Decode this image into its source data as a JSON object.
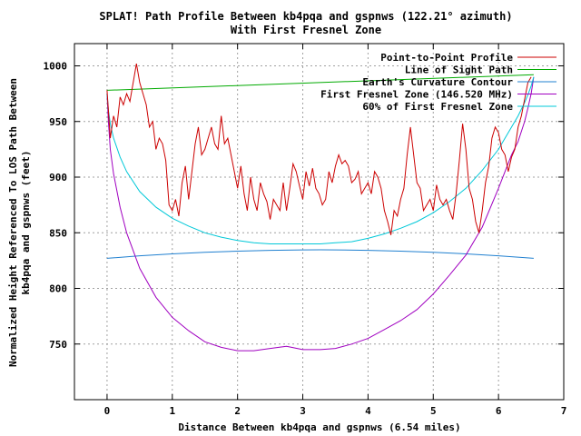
{
  "chart_data": {
    "type": "line",
    "title": "SPLAT! Path Profile Between kb4pqa and gspnws (122.21° azimuth)",
    "subtitle": "With First Fresnel Zone",
    "xlabel": "Distance Between kb4pqa and gspnws (6.54 miles)",
    "ylabel_line1": "Normalized Height Referenced To LOS Path Between",
    "ylabel_line2": "kb4pqa and gspnws (feet)",
    "xlim": [
      -0.5,
      7
    ],
    "ylim": [
      700,
      1020
    ],
    "xticks": [
      0,
      1,
      2,
      3,
      4,
      5,
      6,
      7
    ],
    "yticks": [
      750,
      800,
      850,
      900,
      950,
      1000
    ],
    "grid": true,
    "legend_position": "top-right",
    "series": [
      {
        "name": "Point-to-Point Profile",
        "color": "#cc0000",
        "x": [
          0,
          0.05,
          0.1,
          0.15,
          0.2,
          0.25,
          0.3,
          0.35,
          0.4,
          0.45,
          0.5,
          0.55,
          0.6,
          0.65,
          0.7,
          0.75,
          0.8,
          0.85,
          0.9,
          0.95,
          1.0,
          1.05,
          1.1,
          1.15,
          1.2,
          1.25,
          1.3,
          1.35,
          1.4,
          1.45,
          1.5,
          1.55,
          1.6,
          1.65,
          1.7,
          1.75,
          1.8,
          1.85,
          1.9,
          1.95,
          2.0,
          2.05,
          2.1,
          2.15,
          2.2,
          2.25,
          2.3,
          2.35,
          2.4,
          2.45,
          2.5,
          2.55,
          2.6,
          2.65,
          2.7,
          2.75,
          2.8,
          2.85,
          2.9,
          2.95,
          3.0,
          3.05,
          3.1,
          3.15,
          3.2,
          3.25,
          3.3,
          3.35,
          3.4,
          3.45,
          3.5,
          3.55,
          3.6,
          3.65,
          3.7,
          3.75,
          3.8,
          3.85,
          3.9,
          3.95,
          4.0,
          4.05,
          4.1,
          4.15,
          4.2,
          4.25,
          4.3,
          4.35,
          4.4,
          4.45,
          4.5,
          4.55,
          4.6,
          4.65,
          4.7,
          4.75,
          4.8,
          4.85,
          4.9,
          4.95,
          5.0,
          5.05,
          5.1,
          5.15,
          5.2,
          5.25,
          5.3,
          5.35,
          5.4,
          5.45,
          5.5,
          5.55,
          5.6,
          5.65,
          5.7,
          5.75,
          5.8,
          5.85,
          5.9,
          5.95,
          6.0,
          6.05,
          6.1,
          6.15,
          6.2,
          6.25,
          6.3,
          6.35,
          6.4,
          6.45,
          6.5
        ],
        "y": [
          978,
          935,
          955,
          945,
          972,
          965,
          975,
          968,
          985,
          1002,
          985,
          975,
          965,
          945,
          950,
          925,
          935,
          930,
          915,
          875,
          870,
          880,
          865,
          895,
          910,
          880,
          905,
          930,
          945,
          920,
          925,
          935,
          945,
          930,
          925,
          955,
          930,
          935,
          920,
          905,
          890,
          910,
          885,
          870,
          900,
          880,
          870,
          895,
          885,
          878,
          862,
          880,
          875,
          870,
          895,
          870,
          890,
          912,
          905,
          892,
          880,
          905,
          892,
          908,
          890,
          885,
          875,
          880,
          905,
          895,
          910,
          920,
          912,
          915,
          910,
          895,
          898,
          905,
          885,
          890,
          895,
          885,
          905,
          900,
          890,
          870,
          860,
          848,
          870,
          865,
          880,
          890,
          920,
          945,
          920,
          895,
          890,
          870,
          875,
          880,
          870,
          893,
          880,
          875,
          880,
          870,
          862,
          885,
          915,
          948,
          925,
          890,
          880,
          860,
          850,
          870,
          895,
          910,
          935,
          945,
          940,
          925,
          920,
          905,
          918,
          925,
          945,
          955,
          970,
          985,
          990
        ]
      },
      {
        "name": "Line of Sight Path",
        "color": "#00aa00",
        "x": [
          0,
          6.54
        ],
        "y": [
          978,
          992
        ]
      },
      {
        "name": "Earth's Curvature Contour",
        "color": "#2080d0",
        "x": [
          0,
          0.5,
          1,
          1.5,
          2,
          2.5,
          3,
          3.27,
          3.5,
          4,
          4.5,
          5,
          5.5,
          6,
          6.54
        ],
        "y": [
          827,
          829.3,
          831,
          832.4,
          833.5,
          834.2,
          834.6,
          834.7,
          834.6,
          834.2,
          833.5,
          832.4,
          831,
          829.3,
          827
        ]
      },
      {
        "name": "First Fresnel Zone (146.520 MHz)",
        "color": "#a000c0",
        "x": [
          0,
          0.02,
          0.05,
          0.1,
          0.2,
          0.3,
          0.5,
          0.75,
          1,
          1.25,
          1.5,
          1.75,
          2,
          2.25,
          2.5,
          2.75,
          3,
          3.27,
          3.5,
          3.75,
          4,
          4.25,
          4.5,
          4.75,
          5,
          5.25,
          5.5,
          5.75,
          6,
          6.2,
          6.3,
          6.4,
          6.45,
          6.5,
          6.54
        ],
        "y": [
          975,
          950,
          925,
          903,
          873,
          850,
          818,
          792,
          774,
          762,
          752,
          747,
          744,
          744,
          746,
          748,
          745,
          745,
          746,
          750,
          755,
          763,
          771,
          781,
          795,
          812,
          830,
          855,
          890,
          920,
          932,
          950,
          962,
          975,
          990
        ]
      },
      {
        "name": "60% of First Fresnel Zone",
        "color": "#00c8d8",
        "x": [
          0,
          0.02,
          0.05,
          0.1,
          0.2,
          0.3,
          0.5,
          0.75,
          1,
          1.25,
          1.5,
          1.75,
          2,
          2.25,
          2.5,
          2.75,
          3,
          3.27,
          3.5,
          3.75,
          4,
          4.25,
          4.5,
          4.75,
          5,
          5.25,
          5.5,
          5.75,
          6,
          6.2,
          6.3,
          6.4,
          6.45,
          6.5,
          6.54
        ],
        "y": [
          975,
          960,
          948,
          935,
          918,
          905,
          887,
          873,
          863,
          856,
          850,
          846,
          843,
          841,
          840,
          840,
          840,
          840,
          841,
          842,
          845,
          849,
          854,
          860,
          868,
          878,
          890,
          906,
          925,
          945,
          955,
          967,
          974,
          982,
          990
        ]
      }
    ]
  }
}
